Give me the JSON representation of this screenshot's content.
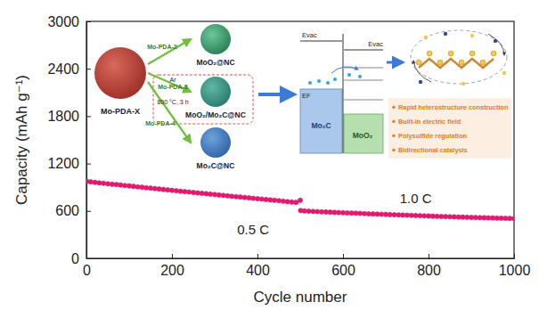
{
  "chart_data": {
    "type": "scatter",
    "x_label": "Cycle number",
    "y_label": "Capacity (mAh g⁻¹)",
    "color": "#e3196e",
    "marker": "circle",
    "grid": false,
    "xlim": [
      0,
      1000
    ],
    "xticks": [
      0,
      200,
      400,
      600,
      800,
      1000
    ],
    "ylim": [
      0,
      3000
    ],
    "yticks": [
      0,
      600,
      1200,
      1800,
      2400,
      3000
    ],
    "x": [
      1,
      10,
      20,
      30,
      40,
      50,
      60,
      70,
      80,
      90,
      100,
      110,
      120,
      130,
      140,
      150,
      160,
      170,
      180,
      190,
      200,
      210,
      220,
      230,
      240,
      250,
      260,
      270,
      280,
      290,
      300,
      310,
      320,
      330,
      340,
      350,
      360,
      370,
      380,
      390,
      400,
      410,
      420,
      430,
      440,
      450,
      460,
      470,
      480,
      490,
      500,
      501,
      510,
      520,
      530,
      540,
      550,
      560,
      570,
      580,
      590,
      600,
      610,
      620,
      630,
      640,
      650,
      660,
      670,
      680,
      690,
      700,
      710,
      720,
      730,
      740,
      750,
      760,
      770,
      780,
      790,
      800,
      810,
      820,
      830,
      840,
      850,
      860,
      870,
      880,
      890,
      900,
      910,
      920,
      930,
      940,
      950,
      960,
      970,
      980,
      990,
      1000
    ],
    "values": [
      975,
      968,
      962,
      955,
      950,
      944,
      938,
      934,
      928,
      922,
      917,
      911,
      905,
      900,
      894,
      889,
      883,
      878,
      872,
      866,
      861,
      856,
      850,
      845,
      840,
      834,
      829,
      824,
      818,
      813,
      808,
      802,
      797,
      792,
      786,
      781,
      776,
      771,
      766,
      760,
      755,
      750,
      745,
      740,
      735,
      730,
      724,
      718,
      713,
      708,
      735,
      605,
      600,
      597,
      594,
      592,
      589,
      587,
      585,
      582,
      580,
      578,
      575,
      573,
      571,
      569,
      567,
      564,
      562,
      560,
      558,
      556,
      554,
      552,
      550,
      548,
      546,
      544,
      542,
      540,
      538,
      536,
      534,
      532,
      530,
      529,
      527,
      525,
      523,
      522,
      520,
      518,
      517,
      515,
      514,
      512,
      511,
      509,
      508,
      507,
      505,
      504
    ],
    "annotations": [
      {
        "text": "0.5 C",
        "x": 390,
        "y": 300
      },
      {
        "text": "1.0 C",
        "x": 770,
        "y": 700
      }
    ],
    "inset": {
      "precursor": "Mo-PDA-X",
      "routes": [
        {
          "label": "Mo-PDA-2",
          "product": "MoO₂@NC"
        },
        {
          "label": "Mo-PDA-3",
          "product": "MoO₂/Mo₂C@NC",
          "conditions": [
            "Ar",
            "800 °C, 3 h"
          ]
        },
        {
          "label": "Mo-PDA-4",
          "product": "Mo₂C@NC"
        }
      ],
      "band_diagram": {
        "vacuum_left": "Evac",
        "vacuum_right": "Evac",
        "fermi": "EF",
        "left_material": "Mo₂C",
        "right_material": "MoO₂"
      },
      "features": [
        "Rapid heterostructure construction",
        "Built-in electric field",
        "Polysulfide regulation",
        "Bidirectional catalysis"
      ]
    }
  }
}
